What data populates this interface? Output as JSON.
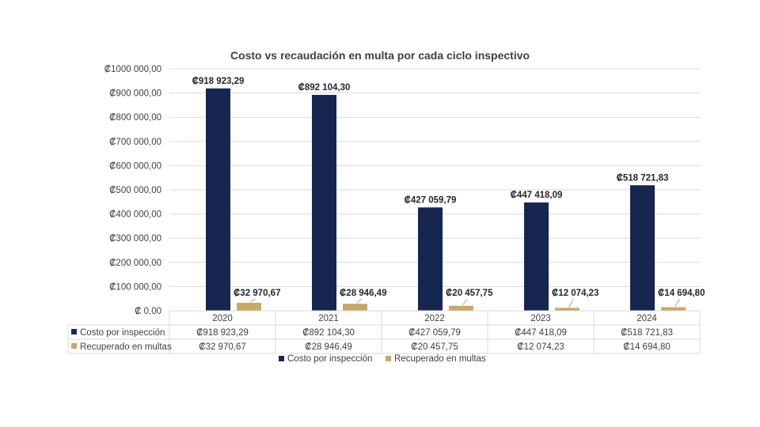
{
  "colors": {
    "cost": "#172651",
    "recovered": "#C9A864",
    "grid": "#D9D9D9",
    "text": "#404040"
  },
  "chart_data": {
    "type": "bar",
    "title": "Costo vs recaudación en multa por cada ciclo inspectivo",
    "categories": [
      "2020",
      "2021",
      "2022",
      "2023",
      "2024"
    ],
    "ylim": [
      0,
      1000000
    ],
    "ytick_values": [
      0,
      100000,
      200000,
      300000,
      400000,
      500000,
      600000,
      700000,
      800000,
      900000,
      1000000
    ],
    "ytick_labels": [
      "₡ 0,00",
      "₡100 000,00",
      "₡200 000,00",
      "₡300 000,00",
      "₡400 000,00",
      "₡500 000,00",
      "₡600 000,00",
      "₡700 000,00",
      "₡800 000,00",
      "₡900 000,00",
      "₡1000 000,00"
    ],
    "grid": true,
    "legend_position": "bottom",
    "data_table": true,
    "series": [
      {
        "name": "Costo por inspección",
        "values": [
          918923.29,
          892104.3,
          427059.79,
          447418.09,
          518721.83
        ],
        "labels": [
          "₡918 923,29",
          "₡892 104,30",
          "₡427 059,79",
          "₡447 418,09",
          "₡518 721,83"
        ]
      },
      {
        "name": "Recuperado en multas",
        "values": [
          32970.67,
          28946.49,
          20457.75,
          12074.23,
          14694.8
        ],
        "labels": [
          "₡32 970,67",
          "₡28 946,49",
          "₡20 457,75",
          "₡12 074,23",
          "₡14 694,80"
        ]
      }
    ]
  }
}
